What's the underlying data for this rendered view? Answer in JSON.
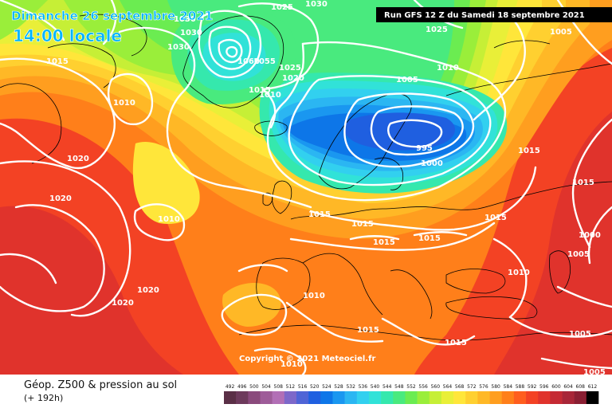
{
  "header": {
    "date": "Dimanche 26 septembre 2021",
    "time": "14:00 locale",
    "run": "Run GFS 12 Z du Samedi 18 septembre 2021"
  },
  "copyright": "Copyright © 2021 Meteociel.fr",
  "legend": {
    "title": "Géop. Z500 & pression au sol",
    "subtitle": "(+ 192h)",
    "ticks": [
      "492",
      "496",
      "500",
      "504",
      "508",
      "512",
      "516",
      "520",
      "524",
      "528",
      "532",
      "536",
      "540",
      "544",
      "548",
      "552",
      "556",
      "560",
      "564",
      "568",
      "572",
      "576",
      "580",
      "584",
      "588",
      "592",
      "596",
      "600",
      "604",
      "608",
      "612"
    ],
    "colors": [
      "#5a2f46",
      "#6d3a5c",
      "#8a4a7c",
      "#9e5c99",
      "#b26fb6",
      "#7d68c9",
      "#4f64d6",
      "#1f5fe0",
      "#0d76e8",
      "#1a97f0",
      "#2bb6f2",
      "#32d0ef",
      "#31e2d8",
      "#35e8ad",
      "#49ea7e",
      "#6bec51",
      "#9aee3a",
      "#c6ef36",
      "#e9ef38",
      "#ffe63a",
      "#ffd030",
      "#ffb826",
      "#ff9e1f",
      "#ff7f1a",
      "#ff5e1e",
      "#f34224",
      "#e0332c",
      "#c52a34",
      "#a82638",
      "#8a1f33",
      "#000000"
    ]
  },
  "isobars": [
    {
      "value": "1030"
    },
    {
      "value": "1025"
    },
    {
      "value": "1030"
    },
    {
      "value": "1030"
    },
    {
      "value": "1025"
    },
    {
      "value": "1005"
    },
    {
      "value": "1015"
    },
    {
      "value": "1010"
    },
    {
      "value": "1030"
    },
    {
      "value": "1060"
    },
    {
      "value": "1055"
    },
    {
      "value": "1025"
    },
    {
      "value": "1020"
    },
    {
      "value": "1010"
    },
    {
      "value": "1005"
    },
    {
      "value": "1015"
    },
    {
      "value": "1010"
    },
    {
      "value": "1020"
    },
    {
      "value": "995"
    },
    {
      "value": "1000"
    },
    {
      "value": "1015"
    },
    {
      "value": "1015"
    },
    {
      "value": "1020"
    },
    {
      "value": "1010"
    },
    {
      "value": "1015"
    },
    {
      "value": "1015"
    },
    {
      "value": "1015"
    },
    {
      "value": "1015"
    },
    {
      "value": "1000"
    },
    {
      "value": "1020"
    },
    {
      "value": "1020"
    },
    {
      "value": "1015"
    },
    {
      "value": "1010"
    },
    {
      "value": "1010"
    },
    {
      "value": "1010"
    },
    {
      "value": "1015"
    },
    {
      "value": "1015"
    },
    {
      "value": "1005"
    },
    {
      "value": "1005"
    },
    {
      "value": "1005"
    }
  ]
}
